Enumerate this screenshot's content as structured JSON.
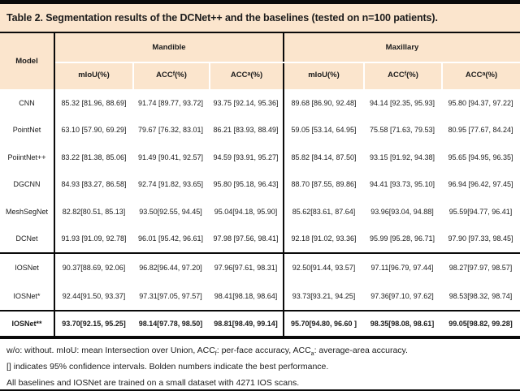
{
  "colors": {
    "peach": "#fbe5cd",
    "line": "#0a0a0a"
  },
  "title": "Table 2. Segmentation results of the DCNet++ and the baselines (tested on n=100 patients).",
  "table": {
    "model_header": "Model",
    "groups": [
      {
        "label": "Mandible"
      },
      {
        "label": "Maxillary"
      }
    ],
    "metric_headers": [
      {
        "base": "mIoU",
        "sub": "",
        "suffix": "(%)"
      },
      {
        "base": "ACC",
        "sub": "f",
        "suffix": "(%)"
      },
      {
        "base": "ACC",
        "sub": "a",
        "suffix": "(%)"
      },
      {
        "base": "mIoU",
        "sub": "",
        "suffix": "(%)"
      },
      {
        "base": "ACC",
        "sub": "f",
        "suffix": "(%)"
      },
      {
        "base": "ACC",
        "sub": "a",
        "suffix": "(%)"
      }
    ],
    "rows": [
      {
        "model": "CNN",
        "values": [
          "85.32 [81.96, 88.69]",
          "91.74 [89.77, 93.72]",
          "93.75 [92.14, 95.36]",
          "89.68 [86.90, 92.48]",
          "94.14 [92.35, 95.93]",
          "95.80 [94.37, 97.22]"
        ]
      },
      {
        "model": "PointNet",
        "values": [
          "63.10 [57.90, 69.29]",
          "79.67 [76.32, 83.01]",
          "86.21 [83.93, 88.49]",
          "59.05 [53.14, 64.95]",
          "75.58 [71.63, 79.53]",
          "80.95 [77.67, 84.24]"
        ]
      },
      {
        "model": "PoiintNet++",
        "values": [
          "83.22 [81.38, 85.06]",
          "91.49 [90.41, 92.57]",
          "94.59 [93.91, 95.27]",
          "85.82 [84.14, 87.50]",
          "93.15 [91.92, 94.38]",
          "95.65 [94.95, 96.35]"
        ]
      },
      {
        "model": "DGCNN",
        "values": [
          "84.93 [83.27, 86.58]",
          "92.74 [91.82, 93.65]",
          "95.80 [95.18, 96.43]",
          "88.70 [87.55, 89.86]",
          "94.41 [93.73, 95.10]",
          "96.94 [96.42, 97.45]"
        ]
      },
      {
        "model": "MeshSegNet",
        "values": [
          "82.82[80.51, 85.13]",
          "93.50[92.55, 94.45]",
          "95.04[94.18, 95.90]",
          "85.62[83.61, 87.64]",
          "93.96[93.04, 94.88]",
          "95.59[94.77, 96.41]"
        ]
      },
      {
        "model": "DCNet",
        "values": [
          "91.93 [91.09, 92.78]",
          "96.01 [95.42, 96.61]",
          "97.98 [97.56, 98.41]",
          "92.18 [91.02, 93.36]",
          "95.99 [95.28, 96.71]",
          "97.90 [97.33, 98.45]"
        ]
      },
      {
        "model": "IOSNet",
        "values": [
          "90.37[88.69, 92.06]",
          "96.82[96.44, 97.20]",
          "97.96[97.61, 98.31]",
          "92.50[91.44, 93.57]",
          "97.11[96.79, 97.44]",
          "98.27[97.97, 98.57]"
        ]
      },
      {
        "model": "IOSNet*",
        "values": [
          "92.44[91.50, 93.37]",
          "97.31[97.05, 97.57]",
          "98.41[98.18, 98.64]",
          "93.73[93.21, 94.25]",
          "97.36[97.10, 97.62]",
          "98.53[98.32, 98.74]"
        ]
      },
      {
        "model": "IOSNet**",
        "values": [
          "93.70[92.15, 95.25]",
          "98.14[97.78, 98.50]",
          "98.81[98.49, 99.14]",
          "95.70[94.80, 96.60 ]",
          "98.35[98.08, 98.61]",
          "99.05[98.82, 99.28]"
        ]
      }
    ]
  },
  "notes": {
    "line1": {
      "p1": "w/o: without. mIoU: mean Intersection over Union, ACC",
      "s1": "f",
      "p2": ":  per-face accuracy, ACC",
      "s2": "a",
      "p3": ": average-area accuracy."
    },
    "line2": "[] indicates 95% confidence intervals. Bolden numbers indicate the best performance.",
    "line3": "All baselines and IOSNet are trained on a small dataset with 4271 IOS scans."
  }
}
